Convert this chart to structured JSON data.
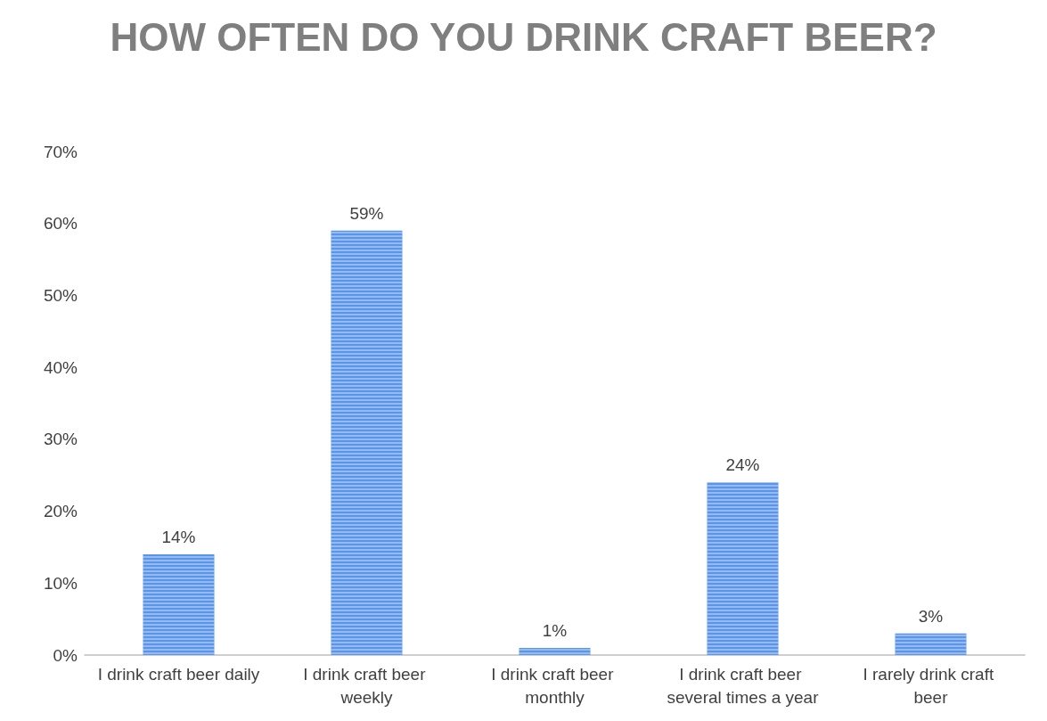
{
  "chart_data": {
    "type": "bar",
    "title": "HOW OFTEN DO YOU DRINK CRAFT BEER?",
    "categories": [
      "I drink craft beer daily",
      "I drink craft beer weekly",
      "I drink craft beer monthly",
      "I drink craft beer several times a year",
      "I rarely drink craft beer"
    ],
    "values": [
      14,
      59,
      1,
      24,
      3
    ],
    "value_labels": [
      "14%",
      "59%",
      "1%",
      "24%",
      "3%"
    ],
    "color": "#5b95e8",
    "ylim": [
      0,
      70
    ],
    "yticks": [
      {
        "value": 0,
        "label": "0%"
      },
      {
        "value": 10,
        "label": "10%"
      },
      {
        "value": 20,
        "label": "20%"
      },
      {
        "value": 30,
        "label": "30%"
      },
      {
        "value": 40,
        "label": "40%"
      },
      {
        "value": 50,
        "label": "50%"
      },
      {
        "value": 60,
        "label": "60%"
      },
      {
        "value": 70,
        "label": "70%"
      }
    ],
    "grid": false
  }
}
